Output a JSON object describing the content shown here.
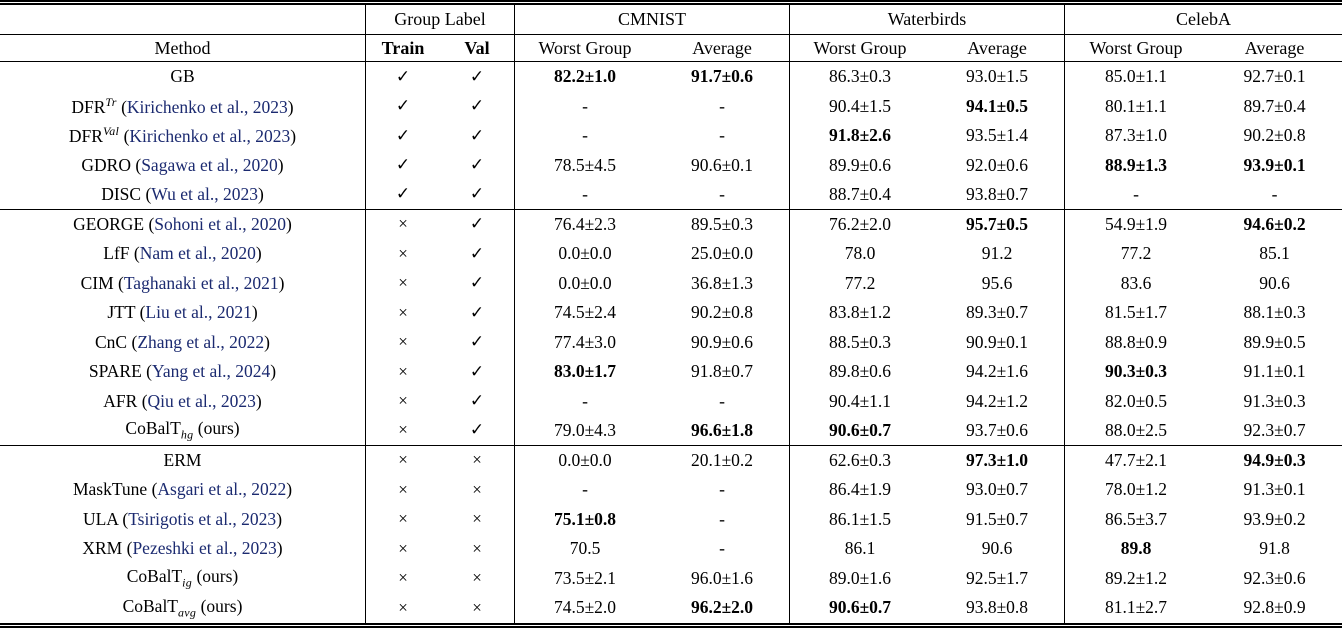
{
  "icons": {
    "check": "✓",
    "cross": "×"
  },
  "colors": {
    "citation_link": "#1b2a70",
    "text": "#000000",
    "rule": "#000000",
    "background": "#ffffff"
  },
  "header": {
    "group_label": "Group Label",
    "method": "Method",
    "train": "Train",
    "val": "Val",
    "worst_group": "Worst Group",
    "average": "Average",
    "datasets": [
      "CMNIST",
      "Waterbirds",
      "CelebA"
    ]
  },
  "table": {
    "rows": [
      {
        "method": {
          "label": "GB"
        },
        "train": true,
        "val": true,
        "cells": [
          {
            "v": "82.2±1.0",
            "b": true
          },
          {
            "v": "91.7±0.6",
            "b": true
          },
          {
            "v": "86.3±0.3"
          },
          {
            "v": "93.0±1.5"
          },
          {
            "v": "85.0±1.1"
          },
          {
            "v": "92.7±0.1"
          }
        ]
      },
      {
        "method": {
          "label": "DFR",
          "sup": "Tr",
          "cite": "Kirichenko et al., 2023"
        },
        "train": true,
        "val": true,
        "cells": [
          {
            "v": "-"
          },
          {
            "v": "-"
          },
          {
            "v": "90.4±1.5"
          },
          {
            "v": "94.1±0.5",
            "b": true
          },
          {
            "v": "80.1±1.1"
          },
          {
            "v": "89.7±0.4"
          }
        ]
      },
      {
        "method": {
          "label": "DFR",
          "sup": "Val",
          "cite": "Kirichenko et al., 2023"
        },
        "train": true,
        "val": true,
        "cells": [
          {
            "v": "-"
          },
          {
            "v": "-"
          },
          {
            "v": "91.8±2.6",
            "b": true
          },
          {
            "v": "93.5±1.4"
          },
          {
            "v": "87.3±1.0"
          },
          {
            "v": "90.2±0.8"
          }
        ]
      },
      {
        "method": {
          "label": "GDRO",
          "cite": "Sagawa et al., 2020"
        },
        "train": true,
        "val": true,
        "cells": [
          {
            "v": "78.5±4.5"
          },
          {
            "v": "90.6±0.1"
          },
          {
            "v": "89.9±0.6"
          },
          {
            "v": "92.0±0.6"
          },
          {
            "v": "88.9±1.3",
            "b": true
          },
          {
            "v": "93.9±0.1",
            "b": true
          }
        ]
      },
      {
        "method": {
          "label": "DISC",
          "cite": "Wu et al., 2023"
        },
        "train": true,
        "val": true,
        "rule_after": true,
        "cells": [
          {
            "v": "-"
          },
          {
            "v": "-"
          },
          {
            "v": "88.7±0.4"
          },
          {
            "v": "93.8±0.7"
          },
          {
            "v": "-"
          },
          {
            "v": "-"
          }
        ]
      },
      {
        "method": {
          "label": "GEORGE",
          "cite": "Sohoni et al., 2020"
        },
        "train": false,
        "val": true,
        "cells": [
          {
            "v": "76.4±2.3"
          },
          {
            "v": "89.5±0.3"
          },
          {
            "v": "76.2±2.0"
          },
          {
            "v": "95.7±0.5",
            "b": true
          },
          {
            "v": "54.9±1.9"
          },
          {
            "v": "94.6±0.2",
            "b": true
          }
        ]
      },
      {
        "method": {
          "label": "LfF",
          "cite": "Nam et al., 2020"
        },
        "train": false,
        "val": true,
        "cells": [
          {
            "v": "0.0±0.0"
          },
          {
            "v": "25.0±0.0"
          },
          {
            "v": "78.0"
          },
          {
            "v": "91.2"
          },
          {
            "v": "77.2"
          },
          {
            "v": "85.1"
          }
        ]
      },
      {
        "method": {
          "label": "CIM",
          "cite": "Taghanaki et al., 2021"
        },
        "train": false,
        "val": true,
        "cells": [
          {
            "v": "0.0±0.0"
          },
          {
            "v": "36.8±1.3"
          },
          {
            "v": "77.2"
          },
          {
            "v": "95.6"
          },
          {
            "v": "83.6"
          },
          {
            "v": "90.6"
          }
        ]
      },
      {
        "method": {
          "label": "JTT",
          "cite": "Liu et al., 2021"
        },
        "train": false,
        "val": true,
        "cells": [
          {
            "v": "74.5±2.4"
          },
          {
            "v": "90.2±0.8"
          },
          {
            "v": "83.8±1.2"
          },
          {
            "v": "89.3±0.7"
          },
          {
            "v": "81.5±1.7"
          },
          {
            "v": "88.1±0.3"
          }
        ]
      },
      {
        "method": {
          "label": "CnC",
          "cite": "Zhang et al., 2022"
        },
        "train": false,
        "val": true,
        "cells": [
          {
            "v": "77.4±3.0"
          },
          {
            "v": "90.9±0.6"
          },
          {
            "v": "88.5±0.3"
          },
          {
            "v": "90.9±0.1"
          },
          {
            "v": "88.8±0.9"
          },
          {
            "v": "89.9±0.5"
          }
        ]
      },
      {
        "method": {
          "label": "SPARE",
          "cite": "Yang et al., 2024"
        },
        "train": false,
        "val": true,
        "cells": [
          {
            "v": "83.0±1.7",
            "b": true
          },
          {
            "v": "91.8±0.7"
          },
          {
            "v": "89.8±0.6"
          },
          {
            "v": "94.2±1.6"
          },
          {
            "v": "90.3±0.3",
            "b": true
          },
          {
            "v": "91.1±0.1"
          }
        ]
      },
      {
        "method": {
          "label": "AFR",
          "cite": "Qiu et al., 2023"
        },
        "train": false,
        "val": true,
        "cells": [
          {
            "v": "-"
          },
          {
            "v": "-"
          },
          {
            "v": "90.4±1.1"
          },
          {
            "v": "94.2±1.2"
          },
          {
            "v": "82.0±0.5"
          },
          {
            "v": "91.3±0.3"
          }
        ]
      },
      {
        "method": {
          "label": "CoBalT",
          "sub": "hg",
          "note": "ours"
        },
        "train": false,
        "val": true,
        "rule_after": true,
        "cells": [
          {
            "v": "79.0±4.3"
          },
          {
            "v": "96.6±1.8",
            "b": true
          },
          {
            "v": "90.6±0.7",
            "b": true
          },
          {
            "v": "93.7±0.6"
          },
          {
            "v": "88.0±2.5"
          },
          {
            "v": "92.3±0.7"
          }
        ]
      },
      {
        "method": {
          "label": "ERM"
        },
        "train": false,
        "val": false,
        "cells": [
          {
            "v": "0.0±0.0"
          },
          {
            "v": "20.1±0.2"
          },
          {
            "v": "62.6±0.3"
          },
          {
            "v": "97.3±1.0",
            "b": true
          },
          {
            "v": "47.7±2.1"
          },
          {
            "v": "94.9±0.3",
            "b": true
          }
        ]
      },
      {
        "method": {
          "label": "MaskTune",
          "cite": "Asgari et al., 2022"
        },
        "train": false,
        "val": false,
        "cells": [
          {
            "v": "-"
          },
          {
            "v": "-"
          },
          {
            "v": "86.4±1.9"
          },
          {
            "v": "93.0±0.7"
          },
          {
            "v": "78.0±1.2"
          },
          {
            "v": "91.3±0.1"
          }
        ]
      },
      {
        "method": {
          "label": "ULA",
          "cite": "Tsirigotis et al., 2023"
        },
        "train": false,
        "val": false,
        "cells": [
          {
            "v": "75.1±0.8",
            "b": true
          },
          {
            "v": "-"
          },
          {
            "v": "86.1±1.5"
          },
          {
            "v": "91.5±0.7"
          },
          {
            "v": "86.5±3.7"
          },
          {
            "v": "93.9±0.2"
          }
        ]
      },
      {
        "method": {
          "label": "XRM",
          "cite": "Pezeshki et al., 2023"
        },
        "train": false,
        "val": false,
        "cells": [
          {
            "v": "70.5"
          },
          {
            "v": "-"
          },
          {
            "v": "86.1"
          },
          {
            "v": "90.6"
          },
          {
            "v": "89.8",
            "b": true
          },
          {
            "v": "91.8"
          }
        ]
      },
      {
        "method": {
          "label": "CoBalT",
          "sub": "ig",
          "note": "ours"
        },
        "train": false,
        "val": false,
        "cells": [
          {
            "v": "73.5±2.1"
          },
          {
            "v": "96.0±1.6"
          },
          {
            "v": "89.0±1.6"
          },
          {
            "v": "92.5±1.7"
          },
          {
            "v": "89.2±1.2"
          },
          {
            "v": "92.3±0.6"
          }
        ]
      },
      {
        "method": {
          "label": "CoBalT",
          "sub": "avg",
          "note": "ours"
        },
        "train": false,
        "val": false,
        "cells": [
          {
            "v": "74.5±2.0"
          },
          {
            "v": "96.2±2.0",
            "b": true
          },
          {
            "v": "90.6±0.7",
            "b": true
          },
          {
            "v": "93.8±0.8"
          },
          {
            "v": "81.1±2.7"
          },
          {
            "v": "92.8±0.9"
          }
        ]
      }
    ]
  }
}
